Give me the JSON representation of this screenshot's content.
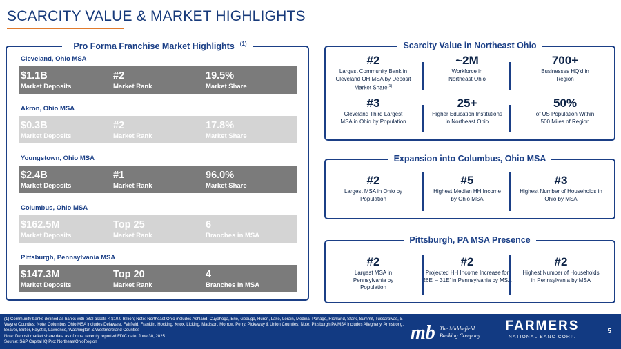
{
  "title": "SCARCITY VALUE & MARKET HIGHLIGHTS",
  "left_panel": {
    "heading": "Pro Forma Franchise Market Highlights",
    "heading_sup": "(1)",
    "markets": [
      {
        "name": "Cleveland, Ohio MSA",
        "cells": [
          {
            "value": "$1.1B",
            "label": "Market Deposits"
          },
          {
            "value": "#2",
            "label": "Market Rank"
          },
          {
            "value": "19.5%",
            "label": "Market Share"
          }
        ]
      },
      {
        "name": "Akron, Ohio MSA",
        "cells": [
          {
            "value": "$0.3B",
            "label": "Market Deposits"
          },
          {
            "value": "#2",
            "label": "Market Rank"
          },
          {
            "value": "17.8%",
            "label": "Market Share"
          }
        ]
      },
      {
        "name": "Youngstown, Ohio MSA",
        "cells": [
          {
            "value": "$2.4B",
            "label": "Market Deposits"
          },
          {
            "value": "#1",
            "label": "Market Rank"
          },
          {
            "value": "96.0%",
            "label": "Market Share"
          }
        ]
      },
      {
        "name": "Columbus, Ohio MSA",
        "cells": [
          {
            "value": "$162.5M",
            "label": "Market Deposits"
          },
          {
            "value": "Top 25",
            "label": "Market Rank"
          },
          {
            "value": "6",
            "label": "Branches in MSA"
          }
        ]
      },
      {
        "name": "Pittsburgh, Pennsylvania MSA",
        "cells": [
          {
            "value": "$147.3M",
            "label": "Market Deposits"
          },
          {
            "value": "Top 20",
            "label": "Market Rank"
          },
          {
            "value": "4",
            "label": "Branches in MSA"
          }
        ]
      }
    ]
  },
  "scarcity": {
    "heading": "Scarcity Value in Northeast Ohio",
    "stats": [
      {
        "big": "#2",
        "desc": "Largest Community Bank in Cleveland OH MSA by Deposit Market Share",
        "sup": "(1)"
      },
      {
        "big": "~2M",
        "desc": "Workforce in Northeast Ohio"
      },
      {
        "big": "700+",
        "desc": "Businesses HQ'd in Region"
      },
      {
        "big": "#3",
        "desc": "Cleveland Third Largest MSA in Ohio by Population"
      },
      {
        "big": "25+",
        "desc": "Higher Education Institutions in Northeast Ohio"
      },
      {
        "big": "50%",
        "desc": "of US Population Within 500 Miles of Region"
      }
    ]
  },
  "columbus": {
    "heading": "Expansion into Columbus, Ohio MSA",
    "stats": [
      {
        "big": "#2",
        "desc": "Largest MSA in Ohio by Population"
      },
      {
        "big": "#5",
        "desc": "Highest Median HH Income by Ohio MSA"
      },
      {
        "big": "#3",
        "desc": "Highest Number of Households in Ohio by MSA"
      }
    ]
  },
  "pittsburgh": {
    "heading": "Pittsburgh, PA MSA Presence",
    "stats": [
      {
        "big": "#2",
        "desc": "Largest MSA in Pennsylvania by Population"
      },
      {
        "big": "#2",
        "desc": "Projected HH Income Increase for 26E' – 31E' in Pennsylvania by MSA"
      },
      {
        "big": "#2",
        "desc": "Highest Number of Households in Pennsylvania by MSA"
      }
    ]
  },
  "footer": {
    "notes": [
      "(1) Community banks defined as banks with total assets < $10.0 Billion; Note: Northeast Ohio includes Ashland, Cuyahoga, Erie, Geauga, Huron, Lake, Lorain, Medina, Portage, Richland, Stark, Summit, Tuscarawas, & Wayne Counties; Note: Columbus Ohio MSA includes Delaware, Fairfield, Franklin, Hocking, Knox, Licking, Madison, Morrow, Perry, Pickaway & Union Counties; Note: Pittsburgh PA MSA includes Allegheny, Armstrong, Beaver, Butler, Fayette, Lawrence, Washington & Westmoreland Counties",
      "Note: Deposit market share data as of most recently reported FDIC date, June 30, 2025",
      "Source: S&P Capital IQ Pro; NortheastOhioRegion"
    ],
    "mb_monogram": "mb",
    "mb_name_line1": "The Middlefield",
    "mb_name_line2": "Banking Company",
    "farmers_name": "FARMERS",
    "farmers_sub": "NATIONAL BANC CORP.",
    "page_number": "5"
  }
}
